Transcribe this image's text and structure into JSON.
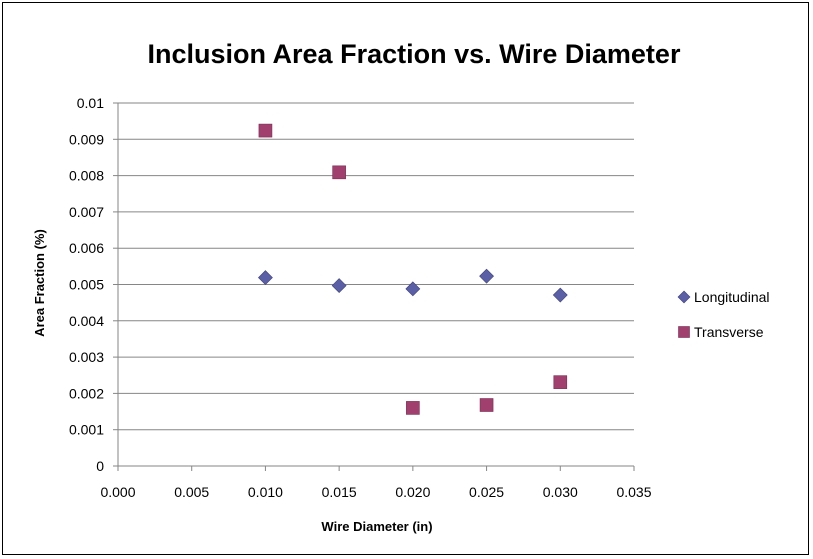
{
  "chart_data": {
    "type": "scatter",
    "title": "Inclusion Area Fraction vs. Wire Diameter",
    "xlabel": "Wire Diameter (in)",
    "ylabel": "Area Fraction (%)",
    "xlim": [
      0,
      0.035
    ],
    "ylim": [
      0,
      0.01
    ],
    "x_ticks": [
      "0.000",
      "0.005",
      "0.010",
      "0.015",
      "0.020",
      "0.025",
      "0.030",
      "0.035"
    ],
    "y_ticks": [
      "0",
      "0.001",
      "0.002",
      "0.003",
      "0.004",
      "0.005",
      "0.006",
      "0.007",
      "0.008",
      "0.009",
      "0.01"
    ],
    "grid": "horizontal major gridlines",
    "legend_position": "right",
    "series": [
      {
        "name": "Longitudinal",
        "marker": "diamond",
        "color": "#5A5FA6",
        "x": [
          0.01,
          0.015,
          0.02,
          0.025,
          0.03
        ],
        "y": [
          0.00519,
          0.00497,
          0.00488,
          0.00523,
          0.00471
        ]
      },
      {
        "name": "Transverse",
        "marker": "square",
        "color": "#A13F6E",
        "x": [
          0.01,
          0.015,
          0.02,
          0.025,
          0.03
        ],
        "y": [
          0.00924,
          0.00809,
          0.0016,
          0.00168,
          0.00231
        ]
      }
    ]
  }
}
